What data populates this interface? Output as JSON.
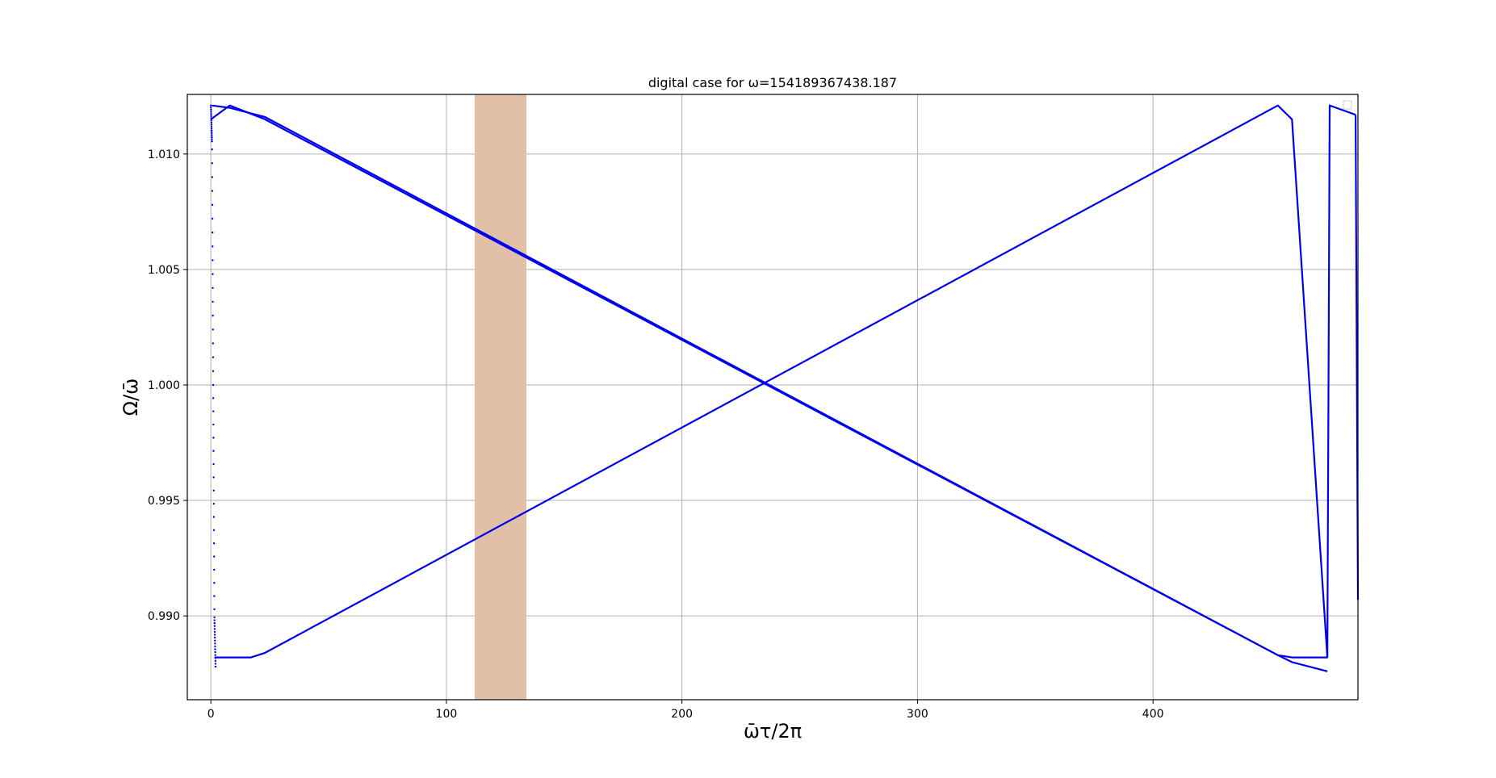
{
  "chart_data": {
    "type": "line",
    "title": "digital case for ω=154189367438.187",
    "xlabel": "ω̄τ/2π",
    "ylabel": "Ω/ω̄",
    "xlim": [
      -10,
      487
    ],
    "ylim": [
      0.98637,
      1.01258
    ],
    "xticks": [
      0,
      100,
      200,
      300,
      400
    ],
    "xtick_labels": [
      "0",
      "100",
      "200",
      "300",
      "400"
    ],
    "yticks": [
      0.99,
      0.995,
      1.0,
      1.005,
      1.01
    ],
    "ytick_labels": [
      "0.990",
      "0.995",
      "1.000",
      "1.005",
      "1.010"
    ],
    "grid": true,
    "legend": "top-right (empty)",
    "colors": {
      "series": "#0000ee",
      "band": "#e2bfa7",
      "grid": "#b0b0b0"
    },
    "shaded_band": {
      "x": [
        112,
        134
      ]
    },
    "series": [
      {
        "style": "solid",
        "x": [
          0,
          8,
          23,
          453,
          459,
          474
        ],
        "y": [
          1.0115,
          1.0121,
          1.0115,
          0.9883,
          0.988,
          0.9876
        ]
      },
      {
        "style": "solid",
        "x": [
          0.5,
          8,
          23,
          453
        ],
        "y": [
          1.0121,
          1.012,
          1.0116,
          0.9883
        ]
      },
      {
        "style": "solid",
        "x": [
          1.5,
          17,
          23,
          453,
          459,
          474,
          475,
          486
        ],
        "y": [
          0.9882,
          0.9882,
          0.9884,
          1.0121,
          1.0115,
          0.9882,
          1.0121,
          1.0117
        ]
      },
      {
        "style": "solid",
        "x": [
          453,
          459,
          474
        ],
        "y": [
          0.9883,
          0.9882,
          0.9882
        ]
      },
      {
        "style": "solid",
        "x": [
          486,
          487
        ],
        "y": [
          1.0117,
          0.9907
        ]
      },
      {
        "style": "dotted",
        "x": [
          0,
          0.5,
          1,
          1.5,
          2
        ],
        "y": [
          1.0121,
          1.0105,
          1.0,
          0.99,
          0.9878
        ]
      }
    ]
  }
}
